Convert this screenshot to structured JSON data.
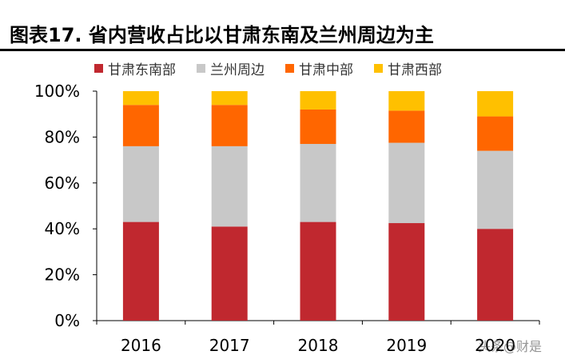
{
  "title": "图表17. 省内营收占比以甘肃东南及兰州周边为主",
  "watermark": "头条@财是",
  "chart_data": {
    "type": "bar",
    "stacked": true,
    "categories": [
      "2016",
      "2017",
      "2018",
      "2019",
      "2020"
    ],
    "series": [
      {
        "name": "甘肃东南部",
        "color": "#C0282F",
        "values": [
          43,
          41,
          43,
          42.5,
          40
        ]
      },
      {
        "name": "兰州周边",
        "color": "#C8C8C8",
        "values": [
          33,
          35,
          34,
          35,
          34
        ]
      },
      {
        "name": "甘肃中部",
        "color": "#FF6600",
        "values": [
          18,
          18,
          15,
          14,
          15
        ]
      },
      {
        "name": "甘肃西部",
        "color": "#FFC000",
        "values": [
          6,
          6,
          8,
          8.5,
          11
        ]
      }
    ],
    "ylim": [
      0,
      100
    ],
    "yticks": [
      0,
      20,
      40,
      60,
      80,
      100
    ],
    "ytick_labels": [
      "0%",
      "20%",
      "40%",
      "60%",
      "80%",
      "100%"
    ],
    "legend_position": "top",
    "grid": false
  }
}
